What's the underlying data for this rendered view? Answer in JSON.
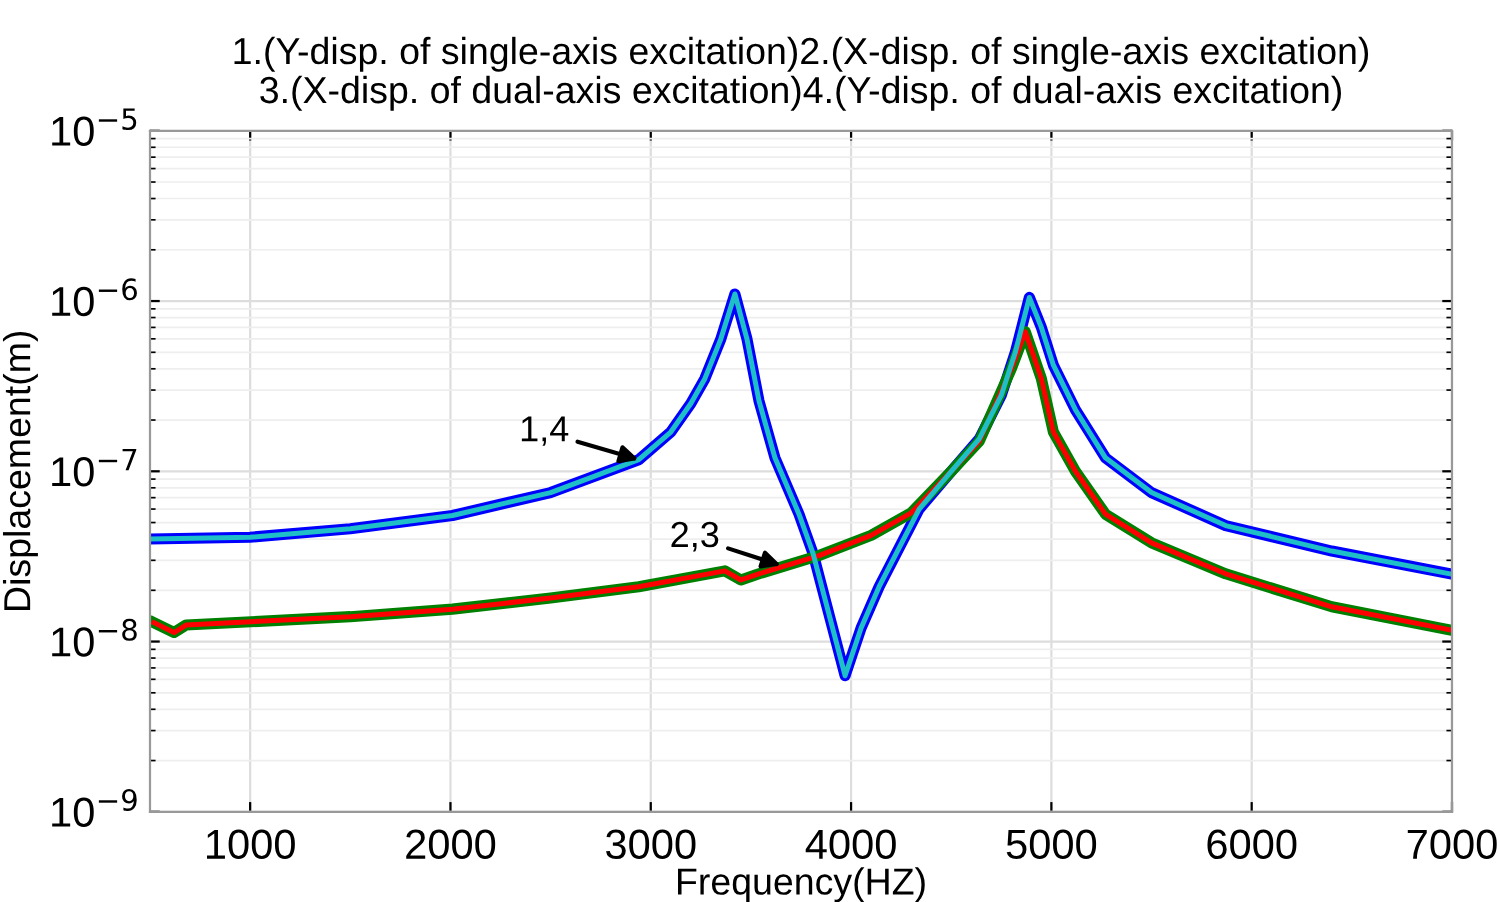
{
  "chart_data": {
    "type": "line",
    "title": "1.(Y-disp. of single-axis excitation)2.(X-disp. of single-axis excitation)\n3.(X-disp. of dual-axis excitation)4.(Y-disp. of dual-axis excitation)",
    "xlabel": "Frequency(HZ)",
    "ylabel": "Displacement(m)",
    "log": "y",
    "grid": true,
    "legend": false,
    "marker": "none",
    "line_style": "solid",
    "xlim": [
      500,
      7000
    ],
    "xticks": [
      1000,
      2000,
      3000,
      4000,
      5000,
      6000,
      7000
    ],
    "ylim": [
      1e-09,
      1e-05
    ],
    "yticks": [
      {
        "value": 1e-09,
        "label": "10$^{−9}$"
      },
      {
        "value": 1e-08,
        "label": "10$^{−8}$"
      },
      {
        "value": 1e-07,
        "label": "10$^{−7}$"
      },
      {
        "value": 1e-06,
        "label": "10$^{−6}$"
      },
      {
        "value": 1e-05,
        "label": "10$^{−5}$"
      }
    ],
    "series": [
      {
        "color": "#0000ff",
        "x": [
          500,
          1000,
          1500,
          2010,
          2500,
          2940,
          3100,
          3200,
          3270,
          3350,
          3420,
          3480,
          3540,
          3620,
          3740,
          3810,
          3900,
          3970,
          4050,
          4140,
          4340,
          4500,
          4640,
          4750,
          4820,
          4890,
          4950,
          5010,
          5120,
          5270,
          5500,
          5870,
          6400,
          6990
        ],
        "values": [
          4e-08,
          4.1e-08,
          4.6e-08,
          5.5e-08,
          7.5e-08,
          1.17e-07,
          1.7e-07,
          2.5e-07,
          3.5e-07,
          6e-07,
          1.1e-06,
          6e-07,
          2.6e-07,
          1.2e-07,
          5.6e-08,
          3.3e-08,
          1.3e-08,
          6.3e-09,
          1.2e-08,
          2.1e-08,
          6e-08,
          1e-07,
          1.55e-07,
          2.8e-07,
          5e-07,
          1.05e-06,
          7e-07,
          4.2e-07,
          2.3e-07,
          1.2e-07,
          7.5e-08,
          4.8e-08,
          3.4e-08,
          2.5e-08
        ]
      },
      {
        "color": "#008000",
        "x": [
          520,
          620,
          680,
          1500,
          2010,
          2500,
          2940,
          3370,
          3450,
          3540,
          3840,
          4100,
          4300,
          4500,
          4640,
          4800,
          4870,
          4950,
          5010,
          5120,
          5270,
          5500,
          5870,
          6400,
          6990
        ],
        "values": [
          1.29e-08,
          1.13e-08,
          1.25e-08,
          1.4e-08,
          1.55e-08,
          1.8e-08,
          2.1e-08,
          2.6e-08,
          2.3e-08,
          2.5e-08,
          3.2e-08,
          4.2e-08,
          5.7e-08,
          1e-07,
          1.5e-07,
          4e-07,
          6.6e-07,
          3.5e-07,
          1.7e-07,
          1e-07,
          5.6e-08,
          3.8e-08,
          2.5e-08,
          1.6e-08,
          1.17e-08
        ]
      },
      {
        "color": "#ff0000",
        "x": [
          520,
          620,
          680,
          1500,
          2010,
          2500,
          2940,
          3370,
          3450,
          3540,
          3840,
          4100,
          4300,
          4500,
          4640,
          4800,
          4870,
          4950,
          5010,
          5120,
          5270,
          5500,
          5870,
          6400,
          6990
        ],
        "values": [
          1.29e-08,
          1.13e-08,
          1.25e-08,
          1.4e-08,
          1.55e-08,
          1.8e-08,
          2.1e-08,
          2.6e-08,
          2.3e-08,
          2.5e-08,
          3.2e-08,
          4.2e-08,
          5.7e-08,
          1e-07,
          1.5e-07,
          4e-07,
          6.6e-07,
          3.5e-07,
          1.7e-07,
          1e-07,
          5.6e-08,
          3.8e-08,
          2.5e-08,
          1.6e-08,
          1.17e-08
        ]
      },
      {
        "color": "#1fbfc8",
        "x": [
          500,
          1000,
          1500,
          2010,
          2500,
          2940,
          3100,
          3200,
          3270,
          3350,
          3420,
          3480,
          3540,
          3620,
          3740,
          3810,
          3900,
          3970,
          4050,
          4140,
          4340,
          4500,
          4640,
          4750,
          4820,
          4890,
          4950,
          5010,
          5120,
          5270,
          5500,
          5870,
          6400,
          6990
        ],
        "values": [
          4e-08,
          4.1e-08,
          4.6e-08,
          5.5e-08,
          7.5e-08,
          1.17e-07,
          1.7e-07,
          2.5e-07,
          3.5e-07,
          6e-07,
          1.1e-06,
          6e-07,
          2.6e-07,
          1.2e-07,
          5.6e-08,
          3.3e-08,
          1.3e-08,
          6.3e-09,
          1.2e-08,
          2.1e-08,
          6e-08,
          1e-07,
          1.55e-07,
          2.8e-07,
          5e-07,
          1.05e-06,
          7e-07,
          4.2e-07,
          2.3e-07,
          1.2e-07,
          7.5e-08,
          4.8e-08,
          3.4e-08,
          2.5e-08
        ]
      }
    ],
    "annotations": [
      {
        "text": "1,4",
        "x": 2940,
        "y": 1.17e-07
      },
      {
        "text": "2,3",
        "x": 3650,
        "y": 2.8e-08
      }
    ]
  }
}
